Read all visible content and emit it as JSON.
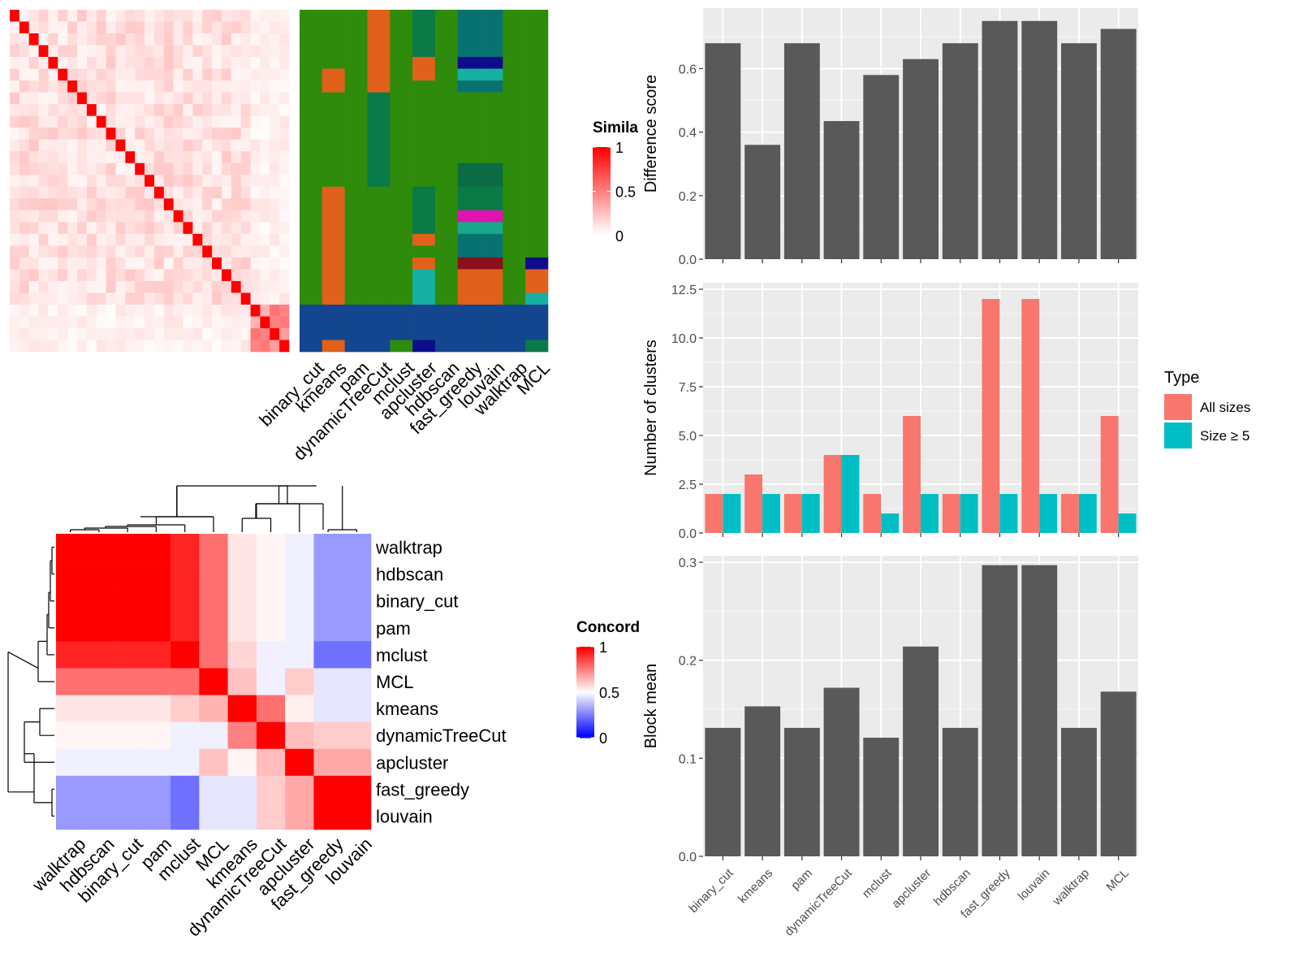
{
  "chart_data": [
    {
      "type": "heatmap",
      "panel": "similarity",
      "legend": {
        "title": "Simila",
        "ticks": [
          "1",
          "0.5",
          "0"
        ],
        "colors": [
          "#ff0000",
          "#ffffff"
        ]
      },
      "n": 29,
      "values_by_group": {
        "diagonal": 1.0,
        "within_block_1": 0.12,
        "within_block_2": 0.55,
        "between_blocks": 0.06
      },
      "block_sizes": [
        25,
        4
      ]
    },
    {
      "type": "heatmap",
      "panel": "cluster_assignments",
      "columns": [
        "binary_cut",
        "kmeans",
        "pam",
        "dynamicTreeCut",
        "mclust",
        "apcluster",
        "hdbscan",
        "fast_greedy",
        "louvain",
        "walktrap",
        "MCL"
      ],
      "palette": {
        "green": "#2e8b0b",
        "orange": "#e0601c",
        "blue": "#13468e",
        "teal": "#087271",
        "darkgreen": "#0a7a46",
        "navy": "#0c0c8c",
        "cyan": "#15b0a3",
        "deepgreen": "#0a6b45",
        "magenta": "#e012b0",
        "darkred": "#8b0f1c",
        "lightteal": "#18a88c"
      }
    },
    {
      "type": "bar",
      "ylabel": "Difference score",
      "categories": [
        "binary_cut",
        "kmeans",
        "pam",
        "dynamicTreeCut",
        "mclust",
        "apcluster",
        "hdbscan",
        "fast_greedy",
        "louvain",
        "walktrap",
        "MCL"
      ],
      "values": [
        0.68,
        0.36,
        0.68,
        0.435,
        0.58,
        0.63,
        0.68,
        0.75,
        0.75,
        0.68,
        0.725
      ],
      "ylim": [
        0,
        0.77
      ],
      "yticks": [
        "0.0",
        "0.2",
        "0.4",
        "0.6"
      ],
      "bar_color": "#595959"
    },
    {
      "type": "bar",
      "ylabel": "Number of clusters",
      "categories": [
        "binary_cut",
        "kmeans",
        "pam",
        "dynamicTreeCut",
        "mclust",
        "apcluster",
        "hdbscan",
        "fast_greedy",
        "louvain",
        "walktrap",
        "MCL"
      ],
      "series": [
        {
          "name": "All sizes",
          "color": "#f8766d",
          "values": [
            2,
            3,
            2,
            4,
            2,
            6,
            2,
            12,
            12,
            2,
            6
          ]
        },
        {
          "name": "Size ≥ 5",
          "color": "#00bfc4",
          "values": [
            2,
            2,
            2,
            4,
            1,
            2,
            2,
            2,
            2,
            2,
            1
          ]
        }
      ],
      "ylim": [
        0,
        12.5
      ],
      "yticks": [
        "0.0",
        "2.5",
        "5.0",
        "7.5",
        "10.0",
        "12.5"
      ],
      "legend": {
        "title": "Type",
        "position": "right"
      }
    },
    {
      "type": "bar",
      "ylabel": "Block mean",
      "categories": [
        "binary_cut",
        "kmeans",
        "pam",
        "dynamicTreeCut",
        "mclust",
        "apcluster",
        "hdbscan",
        "fast_greedy",
        "louvain",
        "walktrap",
        "MCL"
      ],
      "values": [
        0.131,
        0.153,
        0.131,
        0.172,
        0.121,
        0.214,
        0.131,
        0.297,
        0.297,
        0.131,
        0.168
      ],
      "ylim": [
        0,
        0.3
      ],
      "yticks": [
        "0.0",
        "0.1",
        "0.2",
        "0.3"
      ],
      "bar_color": "#595959"
    },
    {
      "type": "heatmap",
      "panel": "concordance",
      "legend": {
        "title": "Concord",
        "ticks": [
          "1",
          "0.5",
          "0"
        ],
        "colors": [
          "#ff0000",
          "#ffffff",
          "#0000ff"
        ]
      },
      "rows": [
        "walktrap",
        "hdbscan",
        "binary_cut",
        "pam",
        "mclust",
        "MCL",
        "kmeans",
        "dynamicTreeCut",
        "apcluster",
        "fast_greedy",
        "louvain"
      ],
      "columns": [
        "walktrap",
        "hdbscan",
        "binary_cut",
        "pam",
        "mclust",
        "MCL",
        "kmeans",
        "dynamicTreeCut",
        "apcluster",
        "fast_greedy",
        "louvain"
      ],
      "values": [
        [
          1,
          1,
          1,
          1,
          0.93,
          0.78,
          0.55,
          0.52,
          0.47,
          0.3,
          0.3
        ],
        [
          1,
          1,
          1,
          1,
          0.93,
          0.78,
          0.55,
          0.52,
          0.47,
          0.3,
          0.3
        ],
        [
          1,
          1,
          1,
          1,
          0.93,
          0.78,
          0.55,
          0.52,
          0.47,
          0.3,
          0.3
        ],
        [
          1,
          1,
          1,
          1,
          0.93,
          0.78,
          0.55,
          0.52,
          0.47,
          0.3,
          0.3
        ],
        [
          0.93,
          0.93,
          0.93,
          0.93,
          1,
          0.78,
          0.58,
          0.47,
          0.47,
          0.22,
          0.22
        ],
        [
          0.78,
          0.78,
          0.78,
          0.78,
          0.78,
          1,
          0.62,
          0.47,
          0.6,
          0.45,
          0.45
        ],
        [
          0.55,
          0.55,
          0.55,
          0.55,
          0.6,
          0.65,
          1,
          0.78,
          0.53,
          0.45,
          0.45
        ],
        [
          0.52,
          0.52,
          0.52,
          0.52,
          0.47,
          0.47,
          0.75,
          1,
          0.63,
          0.6,
          0.6
        ],
        [
          0.47,
          0.47,
          0.47,
          0.47,
          0.47,
          0.62,
          0.52,
          0.63,
          1,
          0.67,
          0.67
        ],
        [
          0.3,
          0.3,
          0.3,
          0.3,
          0.22,
          0.45,
          0.45,
          0.6,
          0.67,
          1,
          1
        ],
        [
          0.3,
          0.3,
          0.3,
          0.3,
          0.22,
          0.45,
          0.45,
          0.6,
          0.67,
          1,
          1
        ]
      ]
    }
  ]
}
